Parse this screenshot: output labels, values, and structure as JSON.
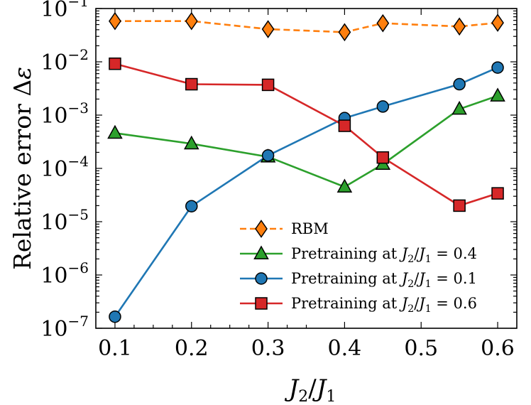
{
  "chart_data": {
    "type": "line",
    "title": "",
    "xlabel": "J_2/J_1",
    "xlabel_parts": {
      "j2": "J",
      "sub2": "2",
      "slash": "/",
      "j1": "J",
      "sub1": "1"
    },
    "ylabel": "Relative error Δε",
    "ylabel_parts": {
      "text": "Relative error ",
      "delta": "Δ",
      "eps": "ε"
    },
    "yscale": "log",
    "xlim": [
      0.075,
      0.625
    ],
    "ylim": [
      1e-07,
      0.1
    ],
    "x_ticks": [
      0.1,
      0.2,
      0.3,
      0.4,
      0.5,
      0.6
    ],
    "x_tick_labels": [
      "0.1",
      "0.2",
      "0.3",
      "0.4",
      "0.5",
      "0.6"
    ],
    "y_ticks": [
      {
        "value": 1e-07,
        "base": "10",
        "exp": "−7"
      },
      {
        "value": 1e-06,
        "base": "10",
        "exp": "−6"
      },
      {
        "value": 1e-05,
        "base": "10",
        "exp": "−5"
      },
      {
        "value": 0.0001,
        "base": "10",
        "exp": "−4"
      },
      {
        "value": 0.001,
        "base": "10",
        "exp": "−3"
      },
      {
        "value": 0.01,
        "base": "10",
        "exp": "−2"
      },
      {
        "value": 0.1,
        "base": "10",
        "exp": "−1"
      }
    ],
    "legend_position": "lower-right",
    "series": [
      {
        "name": "RBM",
        "legend_label": "RBM",
        "color": "#ff7f0e",
        "marker": "diamond",
        "dashed": true,
        "x": [
          0.1,
          0.2,
          0.3,
          0.4,
          0.45,
          0.55,
          0.6
        ],
        "values": [
          0.058,
          0.058,
          0.041,
          0.036,
          0.053,
          0.046,
          0.054
        ]
      },
      {
        "name": "Pretraining at J2/J1 = 0.4",
        "legend_label": "Pretraining at J₂/J₁ = 0.4",
        "legend_parts": {
          "prefix": "Pretraining at ",
          "eq": " = ",
          "value": "0.4"
        },
        "color": "#2ca02c",
        "marker": "triangle",
        "dashed": false,
        "x": [
          0.1,
          0.2,
          0.3,
          0.4,
          0.45,
          0.55,
          0.6
        ],
        "values": [
          0.00046,
          0.00029,
          0.000165,
          4.5e-05,
          0.00012,
          0.0013,
          0.0023
        ]
      },
      {
        "name": "Pretraining at J2/J1 = 0.1",
        "legend_label": "Pretraining at J₂/J₁ = 0.1",
        "legend_parts": {
          "prefix": "Pretraining at ",
          "eq": " = ",
          "value": "0.1"
        },
        "color": "#1f77b4",
        "marker": "circle",
        "dashed": false,
        "x": [
          0.1,
          0.2,
          0.3,
          0.4,
          0.45,
          0.55,
          0.6
        ],
        "values": [
          1.65e-07,
          1.95e-05,
          0.000175,
          0.00088,
          0.00145,
          0.0038,
          0.0078
        ]
      },
      {
        "name": "Pretraining at J2/J1 = 0.6",
        "legend_label": "Pretraining at J₂/J₁ = 0.6",
        "legend_parts": {
          "prefix": "Pretraining at ",
          "eq": " = ",
          "value": "0.6"
        },
        "color": "#d62728",
        "marker": "square",
        "dashed": false,
        "x": [
          0.1,
          0.2,
          0.3,
          0.4,
          0.45,
          0.55,
          0.6
        ],
        "values": [
          0.0092,
          0.0038,
          0.0037,
          0.00063,
          0.00016,
          2e-05,
          3.4e-05
        ]
      }
    ]
  }
}
